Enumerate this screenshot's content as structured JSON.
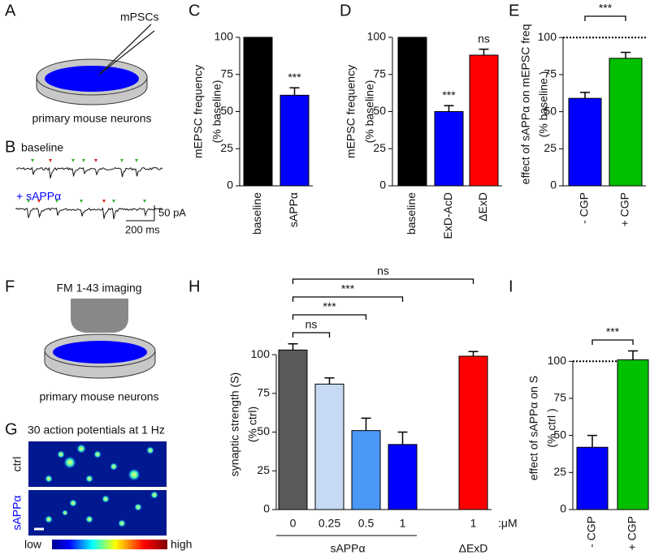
{
  "panels": {
    "A": {
      "label": "A",
      "pipette_label": "mPSCs",
      "caption": "primary mouse neurons"
    },
    "B": {
      "label": "B",
      "traces": [
        "baseline",
        "+ sAPPα"
      ],
      "scale_y": "50 pA",
      "scale_x": "200 ms"
    },
    "F": {
      "label": "F",
      "title": "FM 1-43 imaging",
      "caption": "primary mouse neurons"
    },
    "G": {
      "label": "G",
      "title": "30 action potentials at 1 Hz",
      "rows": [
        "ctrl",
        "sAPPα"
      ],
      "colorbar": [
        "low",
        "high"
      ]
    }
  },
  "chart_data": [
    {
      "type": "bar",
      "label": "C",
      "ylabel": [
        "mEPSC frequency",
        "(% baseline)"
      ],
      "categories": [
        "baseline",
        "sAPPα"
      ],
      "values": [
        100,
        61
      ],
      "errors": [
        0,
        5
      ],
      "colors": [
        "#000000",
        "#0000ff"
      ],
      "ylim": [
        0,
        100
      ],
      "yticks": [
        0,
        25,
        50,
        75,
        100
      ],
      "annotations": [
        {
          "index": 1,
          "text": "***"
        }
      ]
    },
    {
      "type": "bar",
      "label": "D",
      "ylabel": [
        "mEPSC frequency",
        "(% baseline)"
      ],
      "categories": [
        "baseline",
        "ExD-AcD",
        "ΔExD"
      ],
      "values": [
        100,
        50,
        88
      ],
      "errors": [
        0,
        4,
        4
      ],
      "colors": [
        "#000000",
        "#0000ff",
        "#ff0000"
      ],
      "ylim": [
        0,
        100
      ],
      "yticks": [
        0,
        25,
        50,
        75,
        100
      ],
      "annotations": [
        {
          "index": 1,
          "text": "***"
        },
        {
          "index": 2,
          "text": "ns"
        }
      ]
    },
    {
      "type": "bar",
      "label": "E",
      "ylabel": [
        "effect of sAPPα on mEPSC freq",
        "(% baseline )"
      ],
      "categories": [
        "- CGP",
        "+ CGP"
      ],
      "values": [
        59,
        86
      ],
      "errors": [
        4,
        4
      ],
      "colors": [
        "#0000ff",
        "#00c000"
      ],
      "ylim": [
        0,
        110
      ],
      "yticks": [
        0,
        25,
        50,
        75,
        100
      ],
      "reference_line": 100,
      "brackets": [
        {
          "from": 0,
          "to": 1,
          "text": "***"
        }
      ]
    },
    {
      "type": "bar",
      "label": "H",
      "ylabel": [
        "synaptic strength (S)",
        "(% ctrl)"
      ],
      "categories": [
        "0",
        "0.25",
        "0.5",
        "1",
        "1"
      ],
      "unit": ":μM",
      "values": [
        103,
        81,
        51,
        42,
        99
      ],
      "errors": [
        4,
        4,
        8,
        8,
        3
      ],
      "colors": [
        "#5a5a5a",
        "#c6daf3",
        "#4a97f5",
        "#0000ff",
        "#ff0000"
      ],
      "ylim": [
        0,
        110
      ],
      "yticks": [
        0,
        25,
        50,
        75,
        100
      ],
      "groups": [
        {
          "label": "sAPPα",
          "from": 0,
          "to": 3
        },
        {
          "label": "ΔExD",
          "from": 4,
          "to": 4
        }
      ],
      "brackets": [
        {
          "from": 0,
          "to": 1,
          "text": "ns"
        },
        {
          "from": 0,
          "to": 2,
          "text": "***"
        },
        {
          "from": 0,
          "to": 3,
          "text": "***"
        },
        {
          "from": 0,
          "to": 4,
          "text": "ns"
        }
      ]
    },
    {
      "type": "bar",
      "label": "I",
      "ylabel": [
        "effect of sAPPα on S",
        "(% ctrl )"
      ],
      "categories": [
        "- CGP",
        "+ CGP"
      ],
      "values": [
        42,
        101
      ],
      "errors": [
        8,
        6
      ],
      "colors": [
        "#0000ff",
        "#00c000"
      ],
      "ylim": [
        0,
        110
      ],
      "yticks": [
        0,
        25,
        50,
        75,
        100
      ],
      "reference_line": 100,
      "brackets": [
        {
          "from": 0,
          "to": 1,
          "text": "***"
        }
      ]
    }
  ]
}
